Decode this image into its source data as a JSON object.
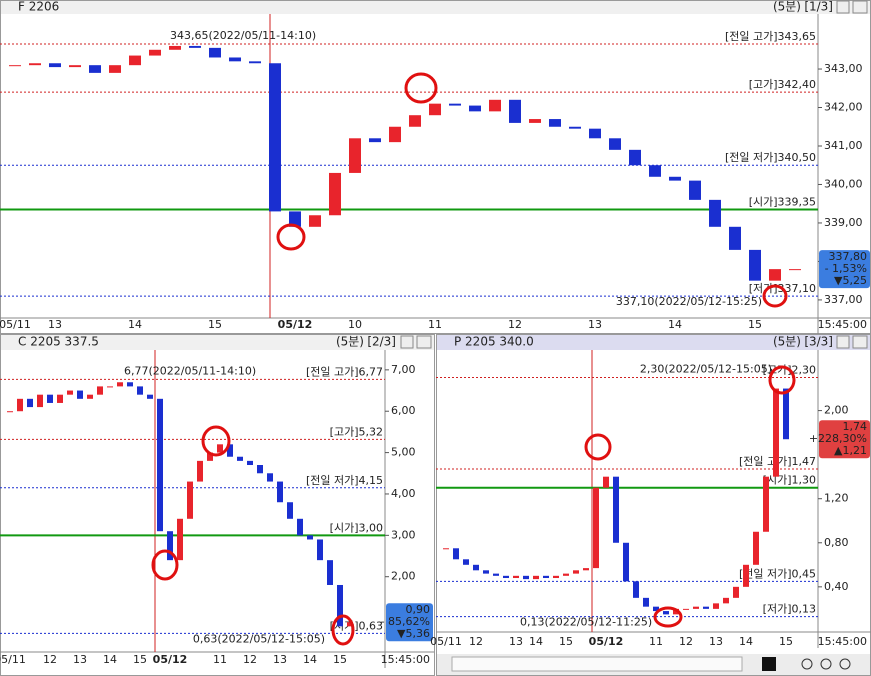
{
  "chart_data": [
    {
      "type": "candlestick",
      "title": "F 2206",
      "interval": "(5분)",
      "page": "[1/3]",
      "up_color": "#e8242c",
      "down_color": "#1a2fd0",
      "categories": [
        "05/11",
        null,
        "13",
        null,
        null,
        null,
        "14",
        null,
        null,
        null,
        "15",
        null,
        null,
        null,
        "05/12",
        null,
        null,
        "10",
        null,
        null,
        null,
        "11",
        null,
        null,
        null,
        "12",
        null,
        null,
        null,
        "13",
        null,
        null,
        null,
        "14",
        null,
        null,
        null,
        "15",
        null,
        null
      ],
      "values": [
        343.1,
        343.15,
        343.05,
        343.1,
        342.9,
        343.1,
        343.35,
        343.5,
        343.6,
        343.55,
        343.3,
        343.2,
        343.15,
        339.3,
        338.9,
        339.2,
        340.3,
        341.2,
        341.1,
        341.5,
        341.8,
        342.1,
        342.05,
        341.9,
        342.2,
        341.6,
        341.7,
        341.5,
        341.45,
        341.2,
        340.9,
        340.5,
        340.2,
        340.1,
        339.6,
        338.9,
        338.3,
        337.5,
        337.8,
        337.8
      ],
      "ylim": [
        336.53,
        344.43
      ],
      "yticks": [
        {
          "value": 343,
          "label": "343,00"
        },
        {
          "value": 342,
          "label": "342,00"
        },
        {
          "value": 341,
          "label": "341,00"
        },
        {
          "value": 340,
          "label": "340,00"
        },
        {
          "value": 339,
          "label": "339,00"
        },
        {
          "value": 338,
          "label": "338,00"
        },
        {
          "value": 337,
          "label": "337,00"
        }
      ],
      "reference_lines": [
        {
          "value": 343.65,
          "label": "[전일 고가]343,65",
          "color": "#d02020",
          "dashed": true
        },
        {
          "value": 342.4,
          "label": "[고가]342,40",
          "color": "#d02020",
          "dashed": true
        },
        {
          "value": 340.5,
          "label": "[전일 저가]340,50",
          "color": "#1a2fd0",
          "dashed": true
        },
        {
          "value": 339.35,
          "label": "[시가]339,35",
          "color": "#119911",
          "dashed": false
        },
        {
          "value": 337.1,
          "label": "[저가]337,10",
          "color": "#1a2fd0",
          "dashed": true
        }
      ],
      "annotations": [
        {
          "value": 343.65,
          "text": "343,65(2022/05/11-14:10)",
          "color": "#d02020"
        },
        {
          "value": 337.1,
          "text": "337,10(2022/05/12-15:25)",
          "color": "#1a2fd0"
        }
      ],
      "badge": {
        "price": "337,80",
        "change": "- 1,53%",
        "diff": "▼5,25",
        "value": 337.8,
        "color": "#3b7de0"
      },
      "time_label": "15:45:00"
    },
    {
      "type": "candlestick",
      "title": "C 2205 337.5",
      "interval": "(5분)",
      "page": "[2/3]",
      "up_color": "#e8242c",
      "down_color": "#1a2fd0",
      "categories": [
        "05/11",
        null,
        null,
        null,
        "12",
        null,
        null,
        "13",
        null,
        null,
        "14",
        null,
        null,
        "15",
        null,
        null,
        "05/12",
        null,
        null,
        null,
        null,
        "11",
        null,
        null,
        "12",
        null,
        null,
        "13",
        null,
        null,
        "14",
        null,
        null,
        "15",
        null
      ],
      "values": [
        6.0,
        6.3,
        6.1,
        6.4,
        6.2,
        6.4,
        6.5,
        6.3,
        6.4,
        6.6,
        6.6,
        6.7,
        6.6,
        6.4,
        6.3,
        3.1,
        2.4,
        3.4,
        4.3,
        4.8,
        5.0,
        5.2,
        4.9,
        4.8,
        4.7,
        4.5,
        4.3,
        3.8,
        3.4,
        3.0,
        2.9,
        2.4,
        1.8,
        0.8,
        0.9
      ],
      "ylim": [
        0.18,
        7.48
      ],
      "yticks": [
        {
          "value": 7,
          "label": "7,00"
        },
        {
          "value": 6,
          "label": "6,00"
        },
        {
          "value": 5,
          "label": "5,00"
        },
        {
          "value": 4,
          "label": "4,00"
        },
        {
          "value": 3,
          "label": "3,00"
        },
        {
          "value": 2,
          "label": "2,00"
        }
      ],
      "reference_lines": [
        {
          "value": 6.77,
          "label": "[전일 고가]6,77",
          "color": "#d02020",
          "dashed": true
        },
        {
          "value": 5.32,
          "label": "[고가]5,32",
          "color": "#d02020",
          "dashed": true
        },
        {
          "value": 4.15,
          "label": "[전일 저가]4,15",
          "color": "#1a2fd0",
          "dashed": true
        },
        {
          "value": 3,
          "label": "[시가]3,00",
          "color": "#119911",
          "dashed": false
        },
        {
          "value": 0.63,
          "label": "[저가]0,63",
          "color": "#1a2fd0",
          "dashed": true
        }
      ],
      "annotations": [
        {
          "value": 6.77,
          "text": "6,77(2022/05/11-14:10)",
          "color": "#d02020"
        },
        {
          "value": 0.63,
          "text": "0,63(2022/05/12-15:05)",
          "color": "#1a2fd0"
        }
      ],
      "badge": {
        "price": "0,90",
        "change": "- 85,62%",
        "diff": "▼5,36",
        "value": 0.9,
        "color": "#3b7de0"
      },
      "time_label": "15:45:00"
    },
    {
      "type": "candlestick",
      "title": "P 2205 340.0",
      "interval": "(5분)",
      "page": "[3/3]",
      "up_color": "#e8242c",
      "down_color": "#1a2fd0",
      "categories": [
        "05/11",
        null,
        null,
        "12",
        null,
        null,
        null,
        "13",
        null,
        "14",
        null,
        null,
        "15",
        null,
        null,
        null,
        "05/12",
        null,
        null,
        null,
        null,
        "11",
        null,
        null,
        "12",
        null,
        null,
        "13",
        null,
        null,
        "14",
        null,
        null,
        null,
        "15"
      ],
      "values": [
        0.75,
        0.65,
        0.6,
        0.55,
        0.52,
        0.5,
        0.48,
        0.5,
        0.47,
        0.5,
        0.48,
        0.5,
        0.52,
        0.55,
        0.57,
        1.3,
        1.4,
        0.8,
        0.45,
        0.3,
        0.22,
        0.18,
        0.15,
        0.2,
        0.2,
        0.22,
        0.2,
        0.25,
        0.3,
        0.4,
        0.6,
        0.9,
        1.4,
        2.2,
        1.74
      ],
      "ylim": [
        -0.01,
        2.55
      ],
      "yticks": [
        {
          "value": 2,
          "label": "2,00"
        },
        {
          "value": 1.2,
          "label": "1,20"
        },
        {
          "value": 0.8,
          "label": "0,80"
        },
        {
          "value": 0.4,
          "label": "0,40"
        }
      ],
      "reference_lines": [
        {
          "value": 2.3,
          "label": "[고가]2,30",
          "color": "#d02020",
          "dashed": true
        },
        {
          "value": 1.47,
          "label": "[전일 고가]1,47",
          "color": "#d02020",
          "dashed": true
        },
        {
          "value": 1.3,
          "label": "[시가]1,30",
          "color": "#119911",
          "dashed": false
        },
        {
          "value": 0.45,
          "label": "[전일 저가]0,45",
          "color": "#1a2fd0",
          "dashed": true
        },
        {
          "value": 0.13,
          "label": "[저가]0,13",
          "color": "#1a2fd0",
          "dashed": true
        }
      ],
      "annotations": [
        {
          "value": 2.3,
          "text": "2,30(2022/05/12-15:05)",
          "color": "#d02020"
        },
        {
          "value": 0.13,
          "text": "0,13(2022/05/12-11:25)",
          "color": "#1a2fd0"
        }
      ],
      "badge": {
        "price": "1,74",
        "change": "+228,30%",
        "diff": "▲1,21",
        "value": 1.74,
        "color": "#e04040"
      },
      "time_label": "15:45:00"
    }
  ]
}
